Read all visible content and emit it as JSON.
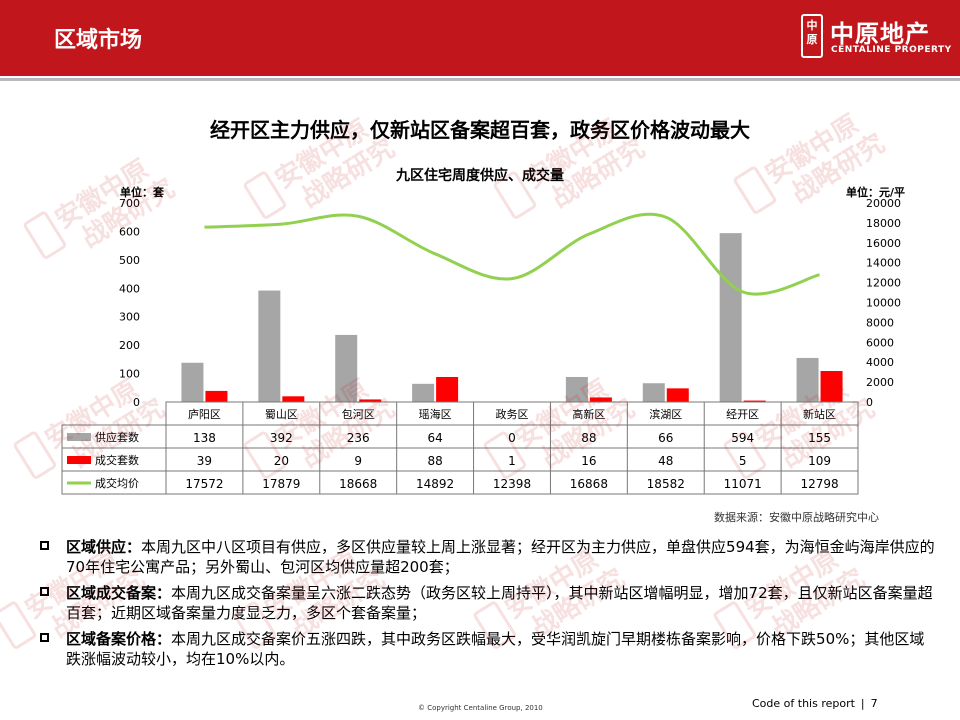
{
  "header": {
    "title": "区域市场",
    "logo_mark": "中原",
    "logo_cn": "中原地产",
    "logo_en": "CENTALINE PROPERTY"
  },
  "headline": "经开区主力供应，仅新站区备案超百套，政务区价格波动最大",
  "chart_data": {
    "type": "bar",
    "title": "九区住宅周度供应、成交量",
    "unit_left": "单位：套",
    "unit_right": "单位：元/平",
    "categories": [
      "庐阳区",
      "蜀山区",
      "包河区",
      "瑶海区",
      "政务区",
      "高新区",
      "滨湖区",
      "经开区",
      "新站区"
    ],
    "series": [
      {
        "name": "供应套数",
        "type": "bar",
        "axis": "left",
        "color": "#a6a6a6",
        "values": [
          138,
          392,
          236,
          64,
          0,
          88,
          66,
          594,
          155
        ]
      },
      {
        "name": "成交套数",
        "type": "bar",
        "axis": "left",
        "color": "#ff0000",
        "values": [
          39,
          20,
          9,
          88,
          1,
          16,
          48,
          5,
          109
        ]
      },
      {
        "name": "成交均价",
        "type": "line",
        "axis": "right",
        "color": "#92d050",
        "values": [
          17572,
          17879,
          18668,
          14892,
          12398,
          16868,
          18582,
          11071,
          12798
        ]
      }
    ],
    "ylim_left": [
      0,
      700
    ],
    "yticks_left": [
      "0",
      "100",
      "200",
      "300",
      "400",
      "500",
      "600",
      "700"
    ],
    "ylim_right": [
      0,
      20000
    ],
    "yticks_right": [
      "0",
      "2000",
      "4000",
      "6000",
      "8000",
      "10000",
      "12000",
      "14000",
      "16000",
      "18000",
      "20000"
    ]
  },
  "source": "数据来源：安徽中原战略研究中心",
  "bullets": [
    {
      "label": "区域供应：",
      "text": "本周九区中八区项目有供应，多区供应量较上周上涨显著；经开区为主力供应，单盘供应594套，为海恒金屿海岸供应的70年住宅公寓产品；另外蜀山、包河区均供应量超200套；"
    },
    {
      "label": "区域成交备案：",
      "text": "本周九区成交备案量呈六涨二跌态势（政务区较上周持平），其中新站区增幅明显，增加72套，且仅新站区备案量超百套；近期区域备案量力度显乏力，多区个套备案量；"
    },
    {
      "label": "区域备案价格：",
      "text": "本周九区成交备案价五涨四跌，其中政务区跌幅最大，受华润凯旋门早期楼栋备案影响，价格下跌50%；其他区域跌涨幅波动较小，均在10%以内。"
    }
  ],
  "watermark": {
    "line1": "安徽中原",
    "line2": "战略研究"
  },
  "footer": {
    "copyright": "© Copyright  Centaline Group, 2010",
    "code": "Code of this report",
    "sep": "|",
    "page": "7"
  }
}
